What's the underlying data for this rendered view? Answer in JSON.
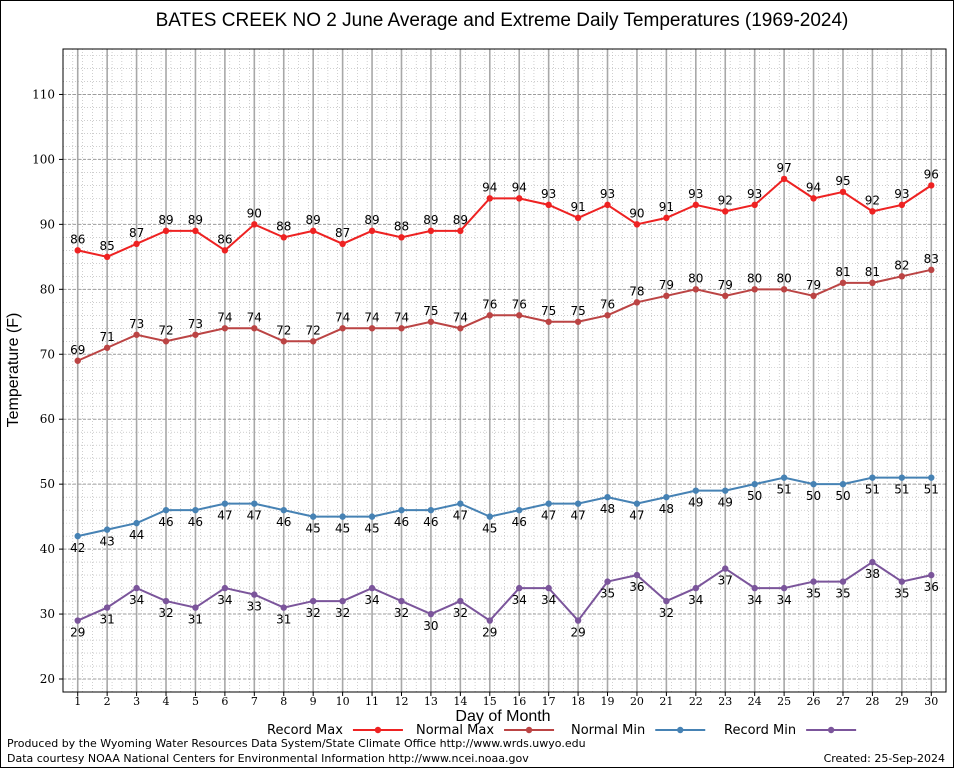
{
  "chart_data": {
    "type": "line",
    "title": "BATES CREEK NO 2 June Average and Extreme Daily Temperatures (1969-2024)",
    "xlabel": "Day of Month",
    "ylabel": "Temperature (F)",
    "x": [
      1,
      2,
      3,
      4,
      5,
      6,
      7,
      8,
      9,
      10,
      11,
      12,
      13,
      14,
      15,
      16,
      17,
      18,
      19,
      20,
      21,
      22,
      23,
      24,
      25,
      26,
      27,
      28,
      29,
      30
    ],
    "xlim": [
      0.5,
      30.5
    ],
    "ylim": [
      18,
      117
    ],
    "yticks": [
      20,
      30,
      40,
      50,
      60,
      70,
      80,
      90,
      100,
      110
    ],
    "grid": true,
    "legend_position": "bottom",
    "series": [
      {
        "name": "Record Max",
        "color": "#ee2222",
        "label_position": "above",
        "values": [
          86,
          85,
          87,
          89,
          89,
          86,
          90,
          88,
          89,
          87,
          89,
          88,
          89,
          89,
          94,
          94,
          93,
          91,
          93,
          90,
          91,
          93,
          92,
          93,
          97,
          94,
          95,
          92,
          93,
          96
        ]
      },
      {
        "name": "Normal Max",
        "color": "#bb4444",
        "label_position": "above",
        "values": [
          69,
          71,
          73,
          72,
          73,
          74,
          74,
          72,
          72,
          74,
          74,
          74,
          75,
          74,
          76,
          76,
          75,
          75,
          76,
          78,
          79,
          80,
          79,
          80,
          80,
          79,
          81,
          81,
          82,
          83
        ]
      },
      {
        "name": "Normal Min",
        "color": "#4682b4",
        "label_position": "below",
        "values": [
          42,
          43,
          44,
          46,
          46,
          47,
          47,
          46,
          45,
          45,
          45,
          46,
          46,
          47,
          45,
          46,
          47,
          47,
          48,
          47,
          48,
          49,
          49,
          50,
          51,
          50,
          50,
          51,
          51,
          51
        ]
      },
      {
        "name": "Record Min",
        "color": "#7b559b",
        "label_position": "below",
        "values": [
          29,
          31,
          34,
          32,
          31,
          34,
          33,
          31,
          32,
          32,
          34,
          32,
          30,
          32,
          29,
          34,
          34,
          29,
          35,
          36,
          32,
          34,
          37,
          34,
          34,
          35,
          35,
          38,
          35,
          36
        ]
      }
    ]
  },
  "footer": {
    "produced_by": "Produced by the Wyoming Water Resources Data System/State Climate Office http://www.wrds.uwyo.edu",
    "courtesy": "Data courtesy NOAA National Centers for Environmental Information http://www.ncei.noaa.gov",
    "created": "Created: 25-Sep-2024"
  }
}
